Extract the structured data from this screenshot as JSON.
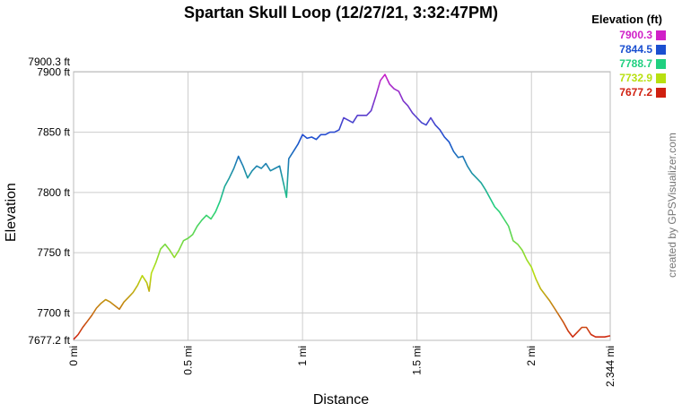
{
  "chart_data": {
    "type": "line",
    "title": "Spartan Skull Loop (12/27/21, 3:32:47PM)",
    "xlabel": "Distance",
    "ylabel": "Elevation",
    "xlim": [
      0,
      2.344
    ],
    "ylim": [
      7677.2,
      7900.3
    ],
    "x_ticks": [
      {
        "value": 0,
        "label": "0 mi"
      },
      {
        "value": 0.5,
        "label": "0.5 mi"
      },
      {
        "value": 1,
        "label": "1 mi"
      },
      {
        "value": 1.5,
        "label": "1.5 mi"
      },
      {
        "value": 2,
        "label": "2 mi"
      },
      {
        "value": 2.344,
        "label": "2.344 mi"
      }
    ],
    "y_ticks": [
      {
        "value": 7677.2,
        "label": "7677.2 ft"
      },
      {
        "value": 7700,
        "label": "7700 ft"
      },
      {
        "value": 7750,
        "label": "7750 ft"
      },
      {
        "value": 7800,
        "label": "7800 ft"
      },
      {
        "value": 7850,
        "label": "7850 ft"
      },
      {
        "value": 7900,
        "label": "7900 ft"
      },
      {
        "value": 7900.3,
        "label": "7900.3 ft"
      }
    ],
    "grid": true,
    "legend": {
      "title": "Elevation (ft)",
      "placement": "top-right",
      "entries": [
        {
          "label": "7900.3",
          "color": "#d020c8"
        },
        {
          "label": "7844.5",
          "color": "#1a4fd0"
        },
        {
          "label": "7788.7",
          "color": "#20d080"
        },
        {
          "label": "7732.9",
          "color": "#b8e010"
        },
        {
          "label": "7677.2",
          "color": "#d02010"
        }
      ]
    },
    "credit": "created by GPSVisualizer.com",
    "series": [
      {
        "x": [
          0,
          0.02,
          0.04,
          0.06,
          0.08,
          0.1,
          0.12,
          0.14,
          0.16,
          0.18,
          0.2,
          0.22,
          0.24,
          0.26,
          0.28,
          0.3,
          0.32,
          0.33,
          0.34,
          0.36,
          0.38,
          0.4,
          0.42,
          0.44,
          0.46,
          0.48,
          0.5,
          0.52,
          0.54,
          0.56,
          0.58,
          0.6,
          0.62,
          0.64,
          0.66,
          0.68,
          0.7,
          0.72,
          0.74,
          0.76,
          0.78,
          0.8,
          0.82,
          0.84,
          0.86,
          0.88,
          0.9,
          0.92,
          0.93,
          0.94,
          0.96,
          0.98,
          1.0,
          1.02,
          1.04,
          1.06,
          1.08,
          1.1,
          1.12,
          1.14,
          1.16,
          1.18,
          1.2,
          1.22,
          1.24,
          1.26,
          1.28,
          1.3,
          1.32,
          1.34,
          1.36,
          1.38,
          1.4,
          1.42,
          1.44,
          1.46,
          1.48,
          1.5,
          1.52,
          1.54,
          1.56,
          1.58,
          1.6,
          1.62,
          1.64,
          1.66,
          1.68,
          1.7,
          1.72,
          1.74,
          1.76,
          1.78,
          1.8,
          1.82,
          1.84,
          1.86,
          1.88,
          1.9,
          1.92,
          1.94,
          1.96,
          1.98,
          2.0,
          2.02,
          2.04,
          2.06,
          2.08,
          2.1,
          2.12,
          2.14,
          2.16,
          2.18,
          2.2,
          2.22,
          2.24,
          2.26,
          2.28,
          2.3,
          2.32,
          2.344
        ],
        "y": [
          7678,
          7682,
          7688,
          7693,
          7698,
          7704,
          7708,
          7711,
          7709,
          7706,
          7703,
          7709,
          7713,
          7717,
          7723,
          7731,
          7725,
          7718,
          7733,
          7742,
          7753,
          7757,
          7752,
          7746,
          7752,
          7760,
          7762,
          7765,
          7772,
          7777,
          7781,
          7778,
          7784,
          7793,
          7805,
          7812,
          7820,
          7830,
          7822,
          7812,
          7818,
          7822,
          7820,
          7824,
          7818,
          7820,
          7822,
          7805,
          7796,
          7828,
          7834,
          7840,
          7848,
          7845,
          7846,
          7844,
          7848,
          7848,
          7850,
          7850,
          7852,
          7862,
          7860,
          7858,
          7864,
          7864,
          7864,
          7868,
          7880,
          7893,
          7898,
          7890,
          7886,
          7884,
          7876,
          7872,
          7866,
          7862,
          7858,
          7856,
          7862,
          7856,
          7852,
          7846,
          7842,
          7834,
          7829,
          7830,
          7822,
          7816,
          7812,
          7808,
          7802,
          7795,
          7788,
          7784,
          7778,
          7772,
          7760,
          7757,
          7752,
          7744,
          7738,
          7728,
          7720,
          7715,
          7710,
          7704,
          7698,
          7692,
          7685,
          7680,
          7684,
          7688,
          7688,
          7682,
          7680,
          7680,
          7680,
          7681
        ]
      }
    ]
  }
}
